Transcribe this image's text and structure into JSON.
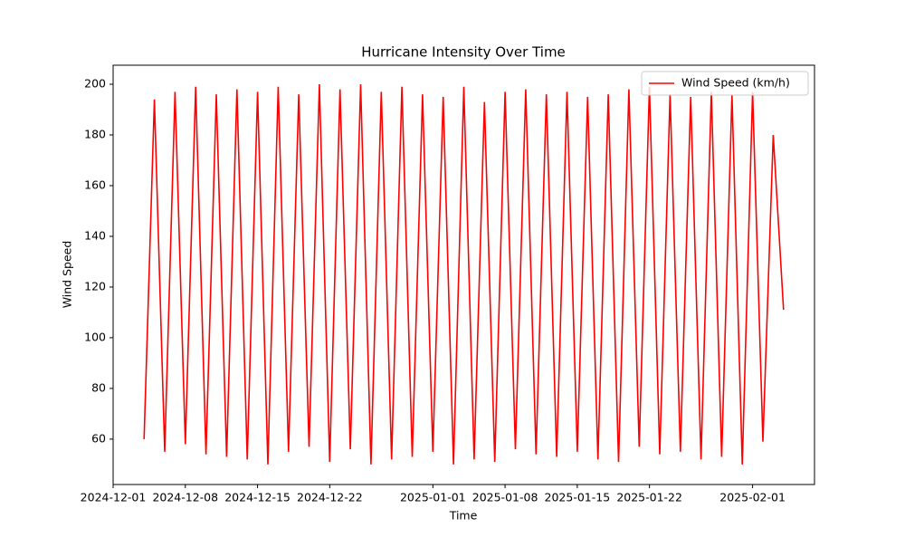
{
  "chart_data": {
    "type": "line",
    "title": "Hurricane Intensity Over Time",
    "xlabel": "Time",
    "ylabel": "Wind Speed",
    "x": [
      "2024-12-04",
      "2024-12-05",
      "2024-12-06",
      "2024-12-07",
      "2024-12-08",
      "2024-12-09",
      "2024-12-10",
      "2024-12-11",
      "2024-12-12",
      "2024-12-13",
      "2024-12-14",
      "2024-12-15",
      "2024-12-16",
      "2024-12-17",
      "2024-12-18",
      "2024-12-19",
      "2024-12-20",
      "2024-12-21",
      "2024-12-22",
      "2024-12-23",
      "2024-12-24",
      "2024-12-25",
      "2024-12-26",
      "2024-12-27",
      "2024-12-28",
      "2024-12-29",
      "2024-12-30",
      "2024-12-31",
      "2025-01-01",
      "2025-01-02",
      "2025-01-03",
      "2025-01-04",
      "2025-01-05",
      "2025-01-06",
      "2025-01-07",
      "2025-01-08",
      "2025-01-09",
      "2025-01-10",
      "2025-01-11",
      "2025-01-12",
      "2025-01-13",
      "2025-01-14",
      "2025-01-15",
      "2025-01-16",
      "2025-01-17",
      "2025-01-18",
      "2025-01-19",
      "2025-01-20",
      "2025-01-21",
      "2025-01-22",
      "2025-01-23",
      "2025-01-24",
      "2025-01-25",
      "2025-01-26",
      "2025-01-27",
      "2025-01-28",
      "2025-01-29",
      "2025-01-30",
      "2025-01-31",
      "2025-02-01",
      "2025-02-02",
      "2025-02-03",
      "2025-02-04"
    ],
    "series": [
      {
        "name": "Wind Speed (km/h)",
        "color": "#ff0000",
        "values": [
          60,
          194,
          55,
          197,
          58,
          199,
          54,
          196,
          53,
          198,
          52,
          197,
          50,
          199,
          55,
          196,
          57,
          200,
          51,
          198,
          56,
          200,
          50,
          197,
          52,
          199,
          53,
          196,
          55,
          195,
          50,
          199,
          52,
          193,
          51,
          197,
          56,
          198,
          54,
          196,
          53,
          197,
          55,
          195,
          52,
          196,
          51,
          198,
          57,
          199,
          54,
          196,
          55,
          195,
          52,
          197,
          53,
          196,
          50,
          197,
          59,
          180,
          111
        ]
      }
    ],
    "xlim": [
      "2024-12-01",
      "2025-02-07"
    ],
    "xticks": [
      "2024-12-01",
      "2024-12-08",
      "2024-12-15",
      "2024-12-22",
      "2025-01-01",
      "2025-01-08",
      "2025-01-15",
      "2025-01-22",
      "2025-02-01"
    ],
    "ylim": [
      42.1,
      207.5
    ],
    "yticks": [
      60,
      80,
      100,
      120,
      140,
      160,
      180,
      200
    ],
    "legend": "upper right"
  }
}
